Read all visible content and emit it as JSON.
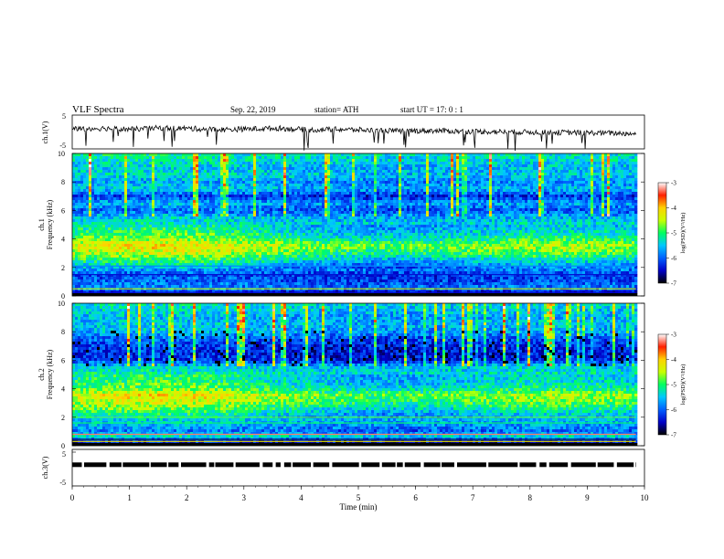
{
  "header": {
    "title": "VLF  Spectra",
    "date": "Sep. 22, 2019",
    "station": "station= ATH",
    "start": "start  UT  =    17: 0   : 1"
  },
  "colors": {
    "low": "#000000",
    "stops": [
      "#000000",
      "#0000c8",
      "#0060ff",
      "#00c8ff",
      "#00ff60",
      "#c8ff00",
      "#ffd200",
      "#ff2000",
      "#ffffff"
    ]
  },
  "chart_data": [
    {
      "type": "line",
      "panel": "ch1-waveform",
      "ylabel": "ch.1(V)",
      "yticks": [
        "5",
        "-5"
      ],
      "ylim": [
        -5,
        5
      ],
      "xlim": [
        0,
        10
      ],
      "data_end_min": 9.85,
      "series": [
        {
          "values": [
            0.9,
            1.1,
            0.8,
            1.2,
            1.0,
            0.7,
            0.9,
            1.1,
            0.6,
            0.8,
            0.5,
            0.3,
            0.4,
            0.2,
            0.1,
            0.0,
            -0.1,
            -0.2,
            -0.3,
            -0.5
          ]
        }
      ]
    },
    {
      "type": "heatmap",
      "panel": "ch1-spectrogram",
      "ylabel": [
        "ch.1",
        "Frequency  (kHz)"
      ],
      "yticks": [
        "0",
        "2",
        "4",
        "6",
        "8",
        "10"
      ],
      "ylim": [
        0,
        10
      ],
      "xlim": [
        0,
        10
      ],
      "data_end_min": 9.85,
      "colorbar": {
        "label": "log(PSD)(V²/Hz)",
        "ticks": [
          "-3",
          "-4",
          "-5",
          "-6",
          "-7"
        ],
        "range": [
          -7,
          -3
        ]
      },
      "profile": {
        "freq_khz": [
          0.0,
          0.3,
          0.6,
          1.0,
          1.5,
          2.0,
          2.5,
          3.0,
          3.5,
          4.0,
          4.5,
          5.0,
          5.5,
          6.0,
          6.5,
          7.0,
          7.5,
          8.0,
          8.5,
          9.0,
          9.5,
          10.0
        ],
        "log_psd": [
          -6.9,
          -6.2,
          -5.8,
          -6.0,
          -6.1,
          -5.6,
          -5.1,
          -4.6,
          -4.3,
          -4.8,
          -5.1,
          -5.3,
          -5.5,
          -6.0,
          -5.6,
          -6.2,
          -5.5,
          -5.7,
          -5.4,
          -5.5,
          -5.3,
          -5.2
        ]
      }
    },
    {
      "type": "heatmap",
      "panel": "ch2-spectrogram",
      "ylabel": [
        "ch.2",
        "Frequency  (kHz)"
      ],
      "yticks": [
        "0",
        "2",
        "4",
        "6",
        "8",
        "10"
      ],
      "ylim": [
        0,
        10
      ],
      "xlim": [
        0,
        10
      ],
      "data_end_min": 9.85,
      "colorbar": {
        "label": "log(PSD)(V²/Hz)",
        "ticks": [
          "-3",
          "-4",
          "-5",
          "-6",
          "-7"
        ],
        "range": [
          -7,
          -3
        ]
      },
      "profile": {
        "freq_khz": [
          0.0,
          0.3,
          0.6,
          1.0,
          1.5,
          2.0,
          2.5,
          3.0,
          3.5,
          4.0,
          4.5,
          5.0,
          5.5,
          6.0,
          6.5,
          7.0,
          7.5,
          8.0,
          8.5,
          9.0,
          9.5,
          10.0
        ],
        "log_psd": [
          -6.9,
          -6.4,
          -5.2,
          -5.9,
          -5.6,
          -5.4,
          -5.0,
          -4.6,
          -4.3,
          -4.9,
          -5.1,
          -5.2,
          -5.4,
          -6.2,
          -6.3,
          -6.2,
          -6.0,
          -5.6,
          -5.5,
          -5.6,
          -5.4,
          -5.3
        ]
      }
    },
    {
      "type": "line",
      "panel": "ch3-waveform",
      "ylabel": "ch.3(V)",
      "yticks": [
        "5",
        "-5"
      ],
      "ylim": [
        -5,
        5
      ],
      "xlim": [
        0,
        10
      ],
      "data_end_min": 9.85,
      "series": [
        {
          "values": [
            0.0,
            0.0,
            0.0,
            0.0,
            0.0,
            0.0,
            0.0,
            0.0,
            0.0,
            0.0
          ]
        }
      ]
    }
  ],
  "xaxis": {
    "label": "Time  (min)",
    "ticks": [
      "0",
      "1",
      "2",
      "3",
      "4",
      "5",
      "6",
      "7",
      "8",
      "9",
      "10"
    ]
  }
}
